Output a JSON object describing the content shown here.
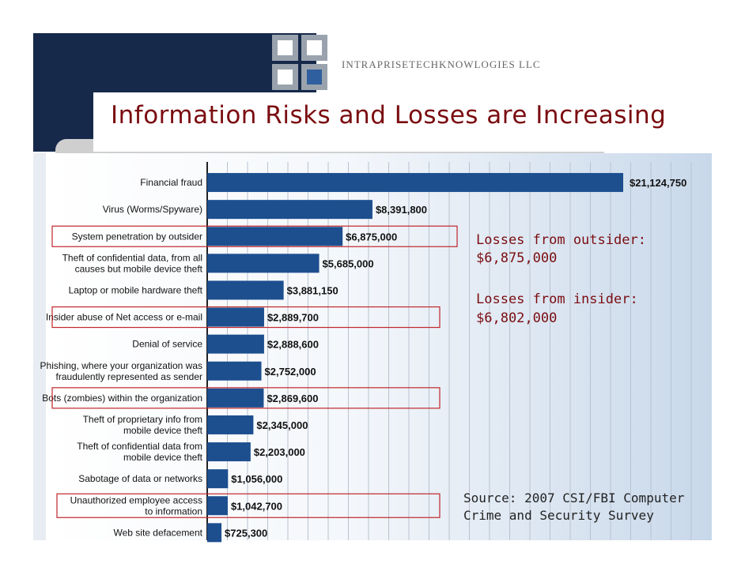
{
  "header": {
    "title": "Information Risks and Losses are Increasing",
    "brand": "INTRAPRISETECHKNOWLOGIES LLC"
  },
  "annotations": {
    "outsider_label": "Losses from outsider:",
    "outsider_value": "$6,875,000",
    "insider_label": "Losses from insider:",
    "insider_value": "$6,802,000",
    "source_line1": "Source: 2007 CSI/FBI Computer",
    "source_line2": "Crime and Security Survey"
  },
  "colors": {
    "bar": "#1d4f8f",
    "title": "#7a0c10",
    "highlight": "#c0262b",
    "navy": "#16294a"
  },
  "chart_data": {
    "type": "bar",
    "orientation": "horizontal",
    "title": "",
    "xlabel": "",
    "ylabel": "",
    "xlim": [
      0,
      22000000
    ],
    "grid": true,
    "categories": [
      [
        "Financial fraud"
      ],
      [
        "Virus (Worms/Spyware)"
      ],
      [
        "System penetration by outsider"
      ],
      [
        "Theft of confidential data, from all",
        "causes but mobile device theft"
      ],
      [
        "Laptop or mobile hardware theft"
      ],
      [
        "Insider abuse of Net access or e-mail"
      ],
      [
        "Denial of service"
      ],
      [
        "Phishing, where your organization was",
        "fraudulently represented as sender"
      ],
      [
        "Bots (zombies) within the organization"
      ],
      [
        "Theft of proprietary info from",
        "mobile device theft"
      ],
      [
        "Theft of confidential data from",
        "mobile device theft"
      ],
      [
        "Sabotage of data or networks"
      ],
      [
        "Unauthorized employee access",
        "to information"
      ],
      [
        "Web site defacement"
      ]
    ],
    "values": [
      21124750,
      8391800,
      6875000,
      5685000,
      3881150,
      2889700,
      2888600,
      2752000,
      2869600,
      2345000,
      2203000,
      1056000,
      1042700,
      725300
    ],
    "value_labels": [
      "$21,124,750",
      "$8,391,800",
      "$6,875,000",
      "$5,685,000",
      "$3,881,150",
      "$2,889,700",
      "$2,888,600",
      "$2,752,000",
      "$2,869,600",
      "$2,345,000",
      "$2,203,000",
      "$1,056,000",
      "$1,042,700",
      "$725,300"
    ],
    "highlighted": [
      2,
      5,
      8,
      12
    ]
  }
}
